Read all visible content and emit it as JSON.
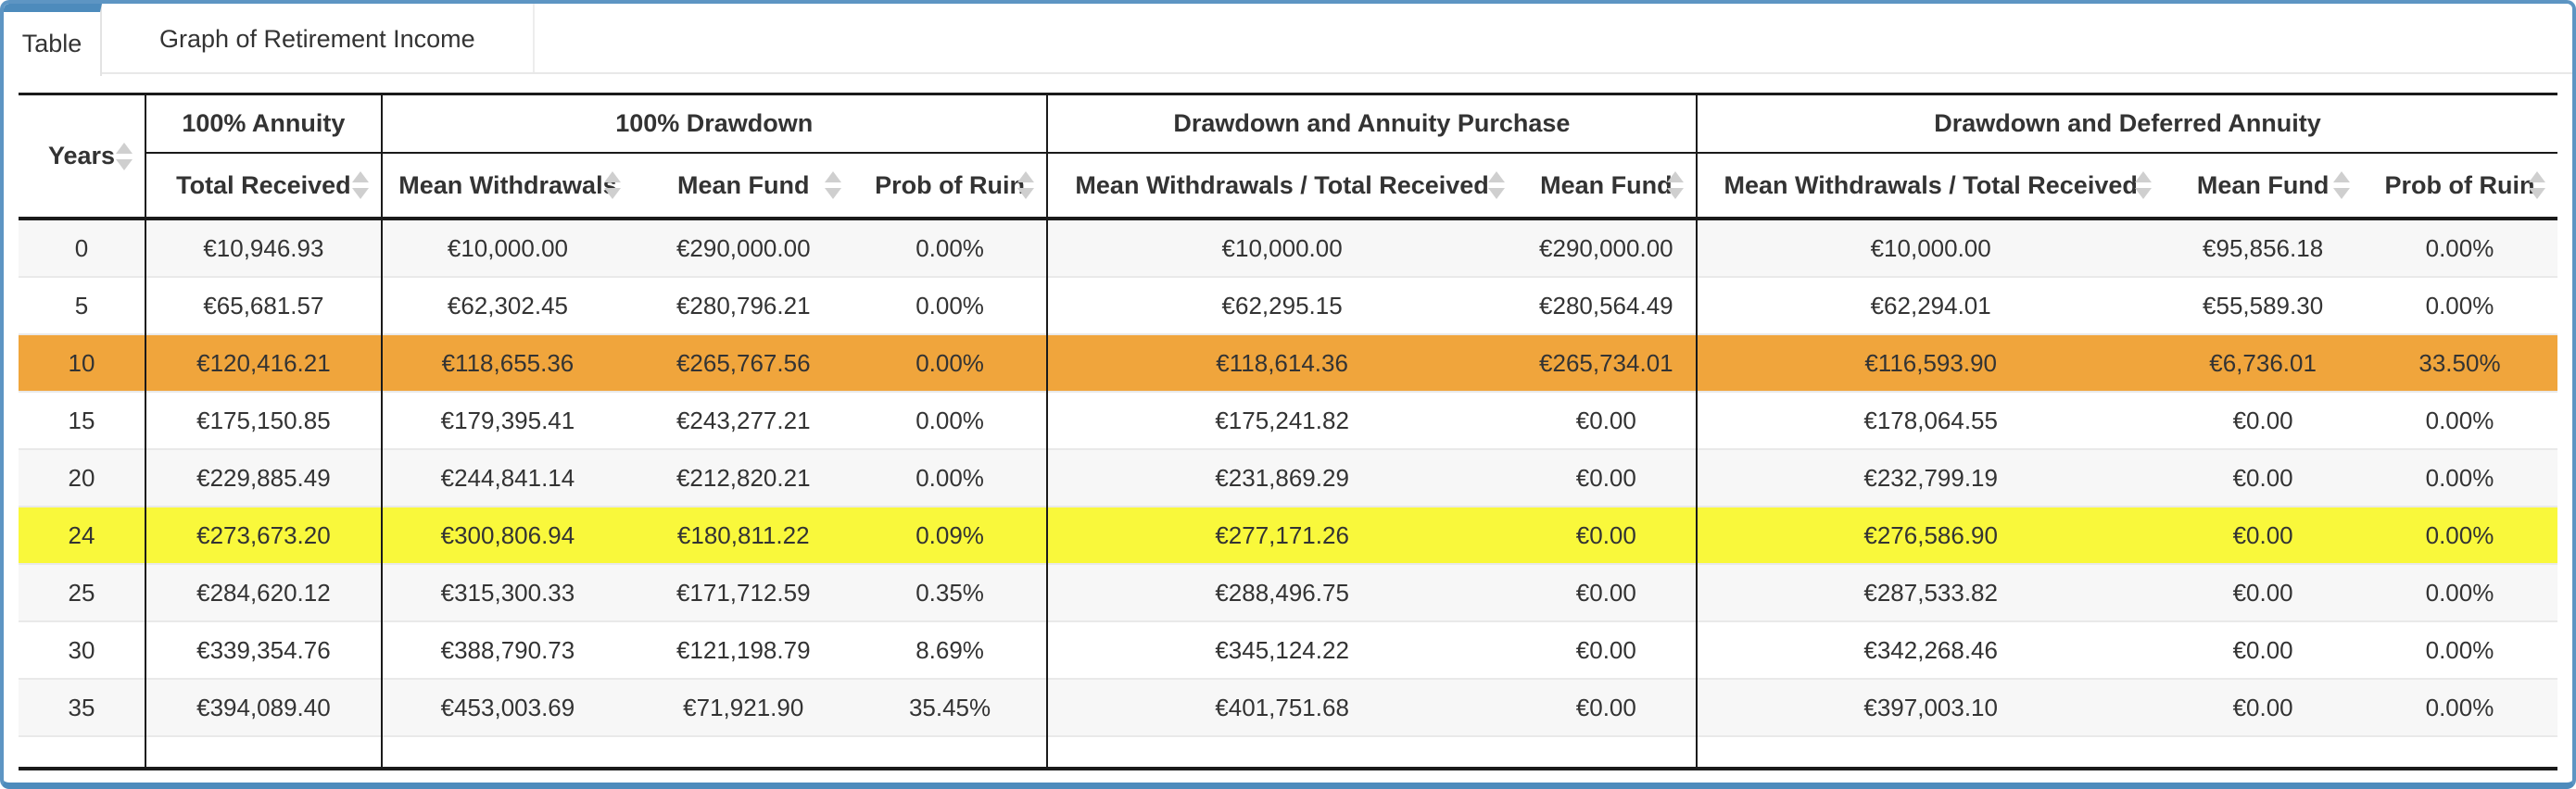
{
  "tabs": [
    {
      "label": "Table",
      "active": true
    },
    {
      "label": "Graph of Retirement Income",
      "active": false
    }
  ],
  "table": {
    "years_header": "Years",
    "groups": [
      {
        "label": "100% Annuity",
        "columns": [
          "Total Received"
        ]
      },
      {
        "label": "100% Drawdown",
        "columns": [
          "Mean Withdrawals",
          "Mean Fund",
          "Prob of Ruin"
        ]
      },
      {
        "label": "Drawdown and Annuity Purchase",
        "columns": [
          "Mean Withdrawals / Total Received",
          "Mean Fund"
        ]
      },
      {
        "label": "Drawdown and Deferred Annuity",
        "columns": [
          "Mean Withdrawals / Total Received",
          "Mean Fund",
          "Prob of Ruin"
        ]
      }
    ],
    "rows": [
      {
        "years": "0",
        "highlight": "none",
        "values": [
          "€10,946.93",
          "€10,000.00",
          "€290,000.00",
          "0.00%",
          "€10,000.00",
          "€290,000.00",
          "€10,000.00",
          "€95,856.18",
          "0.00%"
        ]
      },
      {
        "years": "5",
        "highlight": "none",
        "values": [
          "€65,681.57",
          "€62,302.45",
          "€280,796.21",
          "0.00%",
          "€62,295.15",
          "€280,564.49",
          "€62,294.01",
          "€55,589.30",
          "0.00%"
        ]
      },
      {
        "years": "10",
        "highlight": "orange",
        "values": [
          "€120,416.21",
          "€118,655.36",
          "€265,767.56",
          "0.00%",
          "€118,614.36",
          "€265,734.01",
          "€116,593.90",
          "€6,736.01",
          "33.50%"
        ]
      },
      {
        "years": "15",
        "highlight": "none",
        "values": [
          "€175,150.85",
          "€179,395.41",
          "€243,277.21",
          "0.00%",
          "€175,241.82",
          "€0.00",
          "€178,064.55",
          "€0.00",
          "0.00%"
        ]
      },
      {
        "years": "20",
        "highlight": "none",
        "values": [
          "€229,885.49",
          "€244,841.14",
          "€212,820.21",
          "0.00%",
          "€231,869.29",
          "€0.00",
          "€232,799.19",
          "€0.00",
          "0.00%"
        ]
      },
      {
        "years": "24",
        "highlight": "yellow",
        "values": [
          "€273,673.20",
          "€300,806.94",
          "€180,811.22",
          "0.09%",
          "€277,171.26",
          "€0.00",
          "€276,586.90",
          "€0.00",
          "0.00%"
        ]
      },
      {
        "years": "25",
        "highlight": "none",
        "values": [
          "€284,620.12",
          "€315,300.33",
          "€171,712.59",
          "0.35%",
          "€288,496.75",
          "€0.00",
          "€287,533.82",
          "€0.00",
          "0.00%"
        ]
      },
      {
        "years": "30",
        "highlight": "none",
        "values": [
          "€339,354.76",
          "€388,790.73",
          "€121,198.79",
          "8.69%",
          "€345,124.22",
          "€0.00",
          "€342,268.46",
          "€0.00",
          "0.00%"
        ]
      },
      {
        "years": "35",
        "highlight": "none",
        "values": [
          "€394,089.40",
          "€453,003.69",
          "€71,921.90",
          "35.45%",
          "€401,751.68",
          "€0.00",
          "€397,003.10",
          "€0.00",
          "0.00%"
        ]
      }
    ]
  },
  "colors": {
    "accent_blue": "#4d8bbc",
    "frame_blue": "#5d95c3",
    "highlight_orange": "#f0a53c",
    "highlight_yellow": "#f9f83b"
  }
}
